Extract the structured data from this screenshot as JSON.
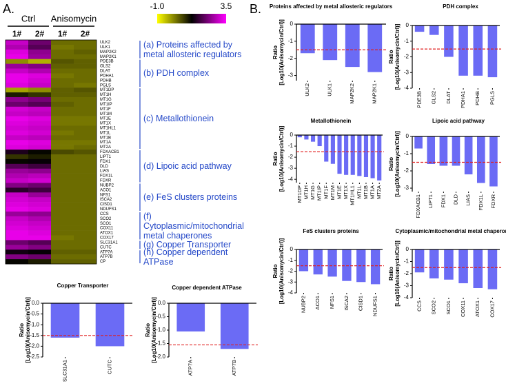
{
  "panel_labels": [
    "A.",
    "B."
  ],
  "chart_data": [
    {
      "type": "heatmap",
      "column_groups": [
        "Ctrl",
        "Anisomycin"
      ],
      "columns": [
        "1#",
        "2#",
        "1#",
        "2#"
      ],
      "rows": [
        "ULK2",
        "ULK1",
        "MAP2K2",
        "MAP2K1",
        "PDE3B",
        "GLS2",
        "DLAT",
        "PDHA1",
        "PDHB",
        "PGLS",
        "MT1DP",
        "MT1H",
        "MT1G",
        "MT1IP",
        "MT1F",
        "MT1M",
        "MT1E",
        "MT1X",
        "MT1HL1",
        "MT1L",
        "MT1B",
        "MT1A",
        "MT2A",
        "FDXACB1",
        "LIPT1",
        "FDX1",
        "DLD",
        "LIAS",
        "FDX1L",
        "FDXR",
        "NUBP2",
        "ACO1",
        "NFS1",
        "ISCA2",
        "CISD1",
        "NDUFS1",
        "CCS",
        "SCO2",
        "SCO1",
        "COX11",
        "ATOX1",
        "COX17",
        "SLC31A1",
        "CUTC",
        "ATP7A",
        "ATP7B",
        "CP"
      ],
      "values": [
        [
          3.0,
          2.2,
          0.3,
          0.3
        ],
        [
          2.8,
          2.0,
          0.2,
          0.3
        ],
        [
          3.2,
          2.5,
          0.3,
          0.4
        ],
        [
          3.3,
          2.6,
          0.3,
          0.3
        ],
        [
          0.0,
          -0.3,
          0.5,
          0.4
        ],
        [
          2.6,
          2.4,
          0.4,
          0.4
        ],
        [
          3.0,
          2.8,
          0.3,
          0.3
        ],
        [
          3.3,
          3.2,
          0.2,
          0.3
        ],
        [
          3.3,
          3.1,
          0.3,
          0.3
        ],
        [
          3.2,
          3.0,
          0.3,
          0.2
        ],
        [
          -0.2,
          0.0,
          0.4,
          0.5
        ],
        [
          1.0,
          0.8,
          0.4,
          0.4
        ],
        [
          2.5,
          2.3,
          0.3,
          0.3
        ],
        [
          2.2,
          2.0,
          0.4,
          0.3
        ],
        [
          3.1,
          3.0,
          0.3,
          0.3
        ],
        [
          3.0,
          2.9,
          0.3,
          0.3
        ],
        [
          3.3,
          3.2,
          0.2,
          0.2
        ],
        [
          3.2,
          3.1,
          0.2,
          0.2
        ],
        [
          3.1,
          3.0,
          0.3,
          0.3
        ],
        [
          3.2,
          3.1,
          0.2,
          0.3
        ],
        [
          3.0,
          2.9,
          0.3,
          0.3
        ],
        [
          3.3,
          3.2,
          0.2,
          0.2
        ],
        [
          3.2,
          3.1,
          0.2,
          0.3
        ],
        [
          1.5,
          1.2,
          0.6,
          0.5
        ],
        [
          0.8,
          1.0,
          0.3,
          0.3
        ],
        [
          1.2,
          1.3,
          0.3,
          0.3
        ],
        [
          2.0,
          1.8,
          0.3,
          0.3
        ],
        [
          2.6,
          2.5,
          0.3,
          0.3
        ],
        [
          2.8,
          2.9,
          0.3,
          0.3
        ],
        [
          3.0,
          3.1,
          0.3,
          0.3
        ],
        [
          2.4,
          2.2,
          0.3,
          0.3
        ],
        [
          1.6,
          1.8,
          0.3,
          0.3
        ],
        [
          3.0,
          2.6,
          0.3,
          0.3
        ],
        [
          3.1,
          3.0,
          0.3,
          0.3
        ],
        [
          3.2,
          3.1,
          0.3,
          0.3
        ],
        [
          3.3,
          3.2,
          0.3,
          0.3
        ],
        [
          2.6,
          2.5,
          0.3,
          0.3
        ],
        [
          3.0,
          2.8,
          0.3,
          0.3
        ],
        [
          3.1,
          3.0,
          0.3,
          0.3
        ],
        [
          3.2,
          3.1,
          0.3,
          0.3
        ],
        [
          3.3,
          3.2,
          0.3,
          0.3
        ],
        [
          3.3,
          3.3,
          0.2,
          0.3
        ],
        [
          2.2,
          2.0,
          0.3,
          0.3
        ],
        [
          2.6,
          2.4,
          0.3,
          0.3
        ],
        [
          1.4,
          1.3,
          0.4,
          0.4
        ],
        [
          2.4,
          2.2,
          0.3,
          0.3
        ],
        [
          1.2,
          1.0,
          0.4,
          0.4
        ]
      ],
      "colormap": [
        "#ffff00",
        "#000000",
        "#ff00ff"
      ],
      "clim": [
        -1,
        3.5
      ],
      "colorbar_ticks": [
        {
          "value": -1,
          "label": "-1.0"
        },
        3.5
      ],
      "groups": [
        "(a) Proteins affected by metal allosteric regulators",
        "(b) PDH complex",
        "(c) Metallothionein",
        "(d) Lipoic acid pathway",
        "(e) FeS clusters proteins",
        "(f) Cytoplasmic/mitochondrial metal chaperones",
        "(g) Copper Transporter",
        "(h) Copper dependent ATPase"
      ]
    },
    {
      "type": "bar",
      "title": "Proteins affected by metal allosteric regulators",
      "categories": [
        "ULK2",
        "ULK1",
        "MAP2K2",
        "MAP2K1"
      ],
      "values": [
        -1.7,
        -2.1,
        -2.5,
        -2.8
      ],
      "color": "#6b6bf5",
      "ylabel": [
        "Ratio",
        "[Log10(Anisomycin/Ctrl)]"
      ],
      "ylim": [
        -3.3,
        0
      ],
      "yticks": [
        0,
        -1,
        -2,
        -3
      ],
      "reference_line": {
        "value": -1.5,
        "color": "#e02020",
        "style": "dashed"
      }
    },
    {
      "type": "bar",
      "title": "PDH complex",
      "categories": [
        "PDE3B",
        "GLS2",
        "DLAT",
        "PDHA1",
        "PDHB",
        "PGLS"
      ],
      "values": [
        -0.4,
        -0.6,
        -2.0,
        -3.2,
        -3.2,
        -3.3
      ],
      "color": "#6b6bf5",
      "ylabel": [
        "Ratio",
        "[Log10(Anisomycin/Ctrl)]"
      ],
      "ylim": [
        -4,
        0
      ],
      "yticks": [
        0,
        -1,
        -2,
        -3,
        -4
      ],
      "reference_line": {
        "value": -1.5,
        "color": "#e02020",
        "style": "dashed"
      }
    },
    {
      "type": "bar",
      "title": "Metallothionein",
      "categories": [
        "MT1DP",
        "MT1H",
        "MT1G",
        "MT1IP",
        "MT1F",
        "MT1M",
        "MT1E",
        "MT1X",
        "MT1HL1",
        "MT1L",
        "MT1B",
        "MT1A",
        "MT2A"
      ],
      "values": [
        -0.2,
        -0.4,
        -0.6,
        -1.0,
        -2.4,
        -2.6,
        -3.5,
        -3.6,
        -3.6,
        -3.7,
        -3.8,
        -3.9,
        -4.1
      ],
      "color": "#6b6bf5",
      "ylabel": [
        "Ratio",
        "[Log10(Anisomycin/Ctrl)]"
      ],
      "ylim": [
        -4.3,
        0
      ],
      "yticks": [
        0,
        -1,
        -2,
        -3,
        -4
      ],
      "reference_line": {
        "value": -1.5,
        "color": "#e02020",
        "style": "dashed"
      }
    },
    {
      "type": "bar",
      "title": "Lipoic acid pathway",
      "categories": [
        "FDXACB1",
        "LIPT1",
        "FDX1",
        "DLD",
        "LIAS",
        "FDX1L",
        "FDXR"
      ],
      "values": [
        -0.7,
        -1.6,
        -1.7,
        -1.7,
        -2.2,
        -2.7,
        -2.9
      ],
      "color": "#6b6bf5",
      "ylabel": [
        "Ratio",
        "[Log10(Anisomycin/Ctrl)]"
      ],
      "ylim": [
        -3.2,
        0
      ],
      "yticks": [
        0,
        -1,
        -2,
        -3
      ],
      "reference_line": {
        "value": -1.5,
        "color": "#e02020",
        "style": "dashed"
      }
    },
    {
      "type": "bar",
      "title": "FeS clusters proteins",
      "categories": [
        "NUBP2",
        "ACO1",
        "NFS1",
        "ISCA2",
        "CISD1",
        "NDUFS1"
      ],
      "values": [
        -2.0,
        -2.3,
        -2.5,
        -2.9,
        -3.0,
        -3.2
      ],
      "color": "#6b6bf5",
      "ylabel": [
        "Ratio",
        "[Log10(Anisomycin/Ctrl)]"
      ],
      "ylim": [
        -4,
        0
      ],
      "yticks": [
        0,
        -1,
        -2,
        -3,
        -4
      ],
      "reference_line": {
        "value": -1.5,
        "color": "#e02020",
        "style": "dashed"
      }
    },
    {
      "type": "bar",
      "title": "Cytoplasmic/mitochondrial metal chaperones",
      "categories": [
        "CCS",
        "SCO2",
        "SCO1",
        "COX11",
        "ATOX1",
        "COX17"
      ],
      "values": [
        -1.9,
        -2.4,
        -2.5,
        -2.8,
        -3.2,
        -3.3
      ],
      "color": "#6b6bf5",
      "ylabel": [
        "Ratio",
        "[Log10(Anisomycin/Ctrl)]"
      ],
      "ylim": [
        -4,
        0
      ],
      "yticks": [
        0,
        -1,
        -2,
        -3,
        -4
      ],
      "reference_line": {
        "value": -1.5,
        "color": "#e02020",
        "style": "dashed"
      }
    },
    {
      "type": "bar",
      "title": "Copper Transporter",
      "categories": [
        "SLC31A1",
        "CUTC"
      ],
      "values": [
        -1.6,
        -2.0
      ],
      "color": "#6b6bf5",
      "ylabel": [
        "Ratio",
        "[Log10(Anisomycin/Ctrl)]"
      ],
      "ylim": [
        -2.5,
        0
      ],
      "yticks": [
        {
          "value": 0,
          "label": "0.0"
        },
        -0.5,
        {
          "value": -1,
          "label": "-1.0"
        },
        -1.5,
        {
          "value": -2,
          "label": "-2.0"
        },
        -2.5
      ],
      "reference_line": {
        "value": -1.5,
        "color": "#e02020",
        "style": "dashed"
      }
    },
    {
      "type": "bar",
      "title": "Copper dependent ATPase",
      "categories": [
        "ATP7A",
        "ATP7B"
      ],
      "values": [
        -1.05,
        -1.7
      ],
      "color": "#6b6bf5",
      "ylabel": [
        "Ratio",
        "[Log10(Anisomycin/Ctrl)]"
      ],
      "ylim": [
        -2,
        0
      ],
      "yticks": [
        {
          "value": 0,
          "label": "0.0"
        },
        -0.5,
        {
          "value": -1,
          "label": "-1.0"
        },
        -1.5,
        {
          "value": -2,
          "label": "-2.0"
        }
      ],
      "reference_line": {
        "value": -1.55,
        "color": "#e02020",
        "style": "dashed"
      }
    }
  ]
}
